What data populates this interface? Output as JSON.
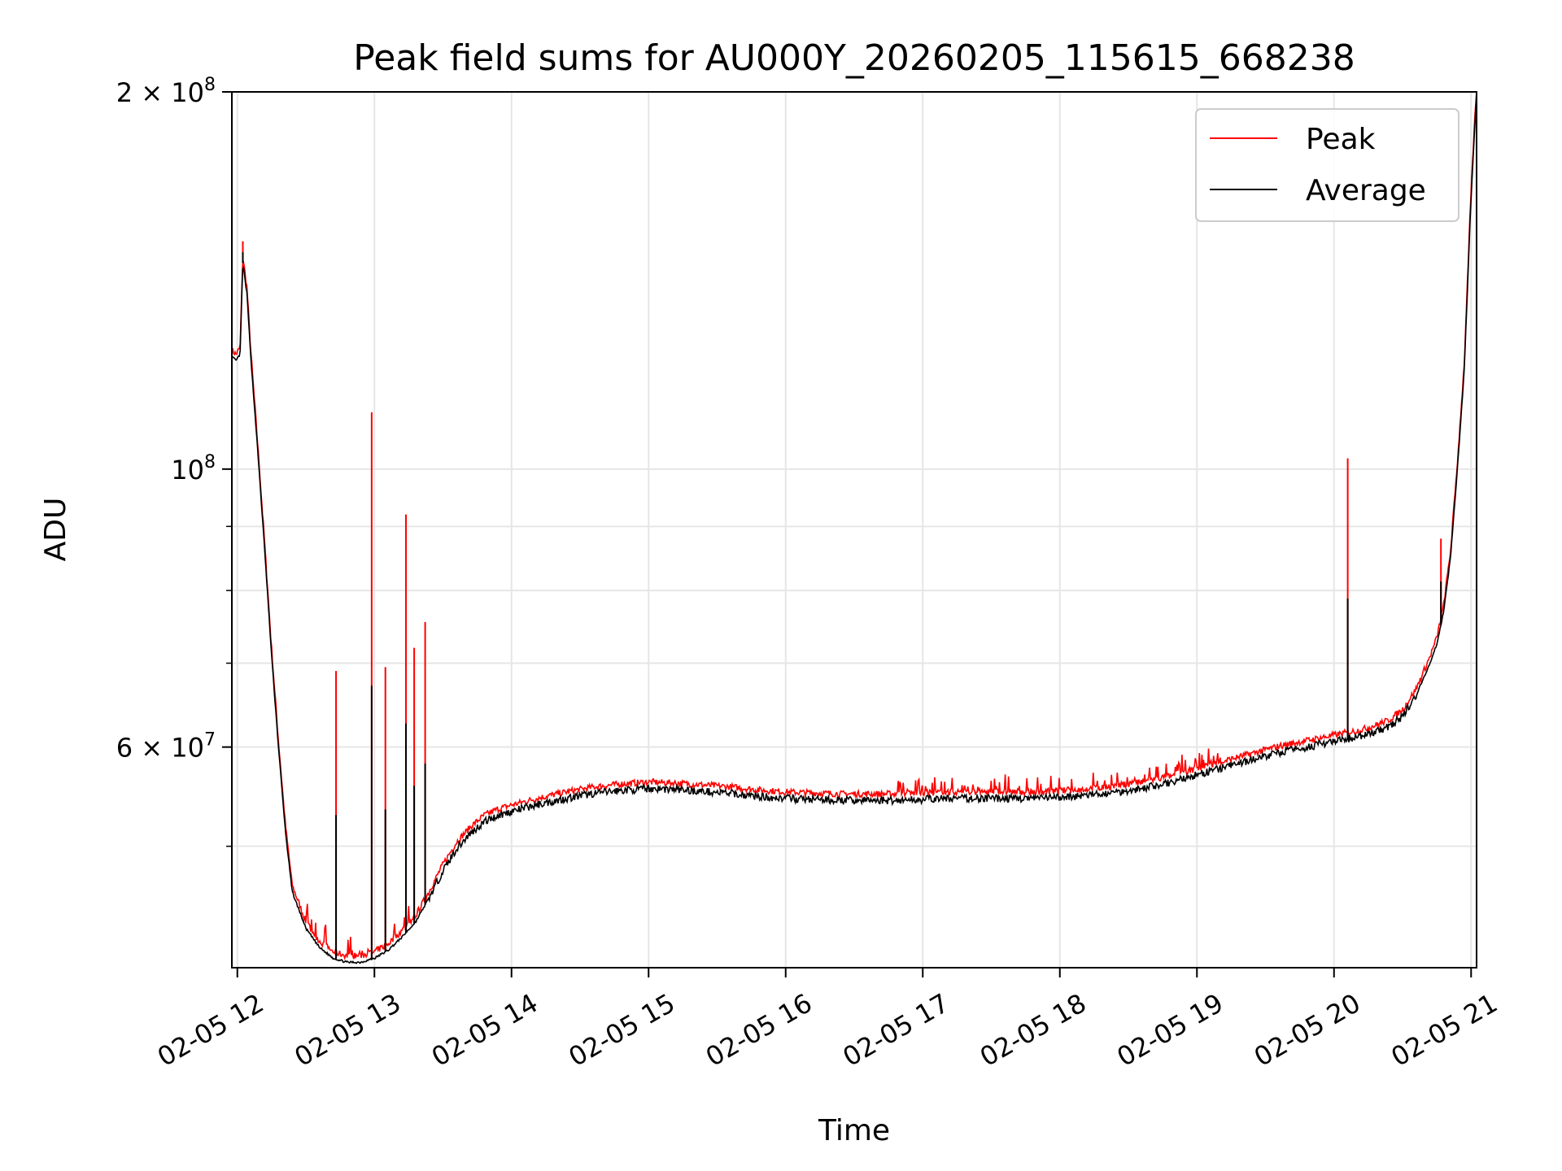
{
  "chart_data": {
    "type": "line",
    "title": "Peak field sums for AU000Y_20260205_115615_668238",
    "xlabel": "Time",
    "ylabel": "ADU",
    "yscale": "log",
    "xlim": [
      11.96,
      21.04
    ],
    "ylim": [
      40000000,
      200000000
    ],
    "grid": true,
    "legend_placement": "top-right",
    "x_ticks": [
      {
        "value": 12,
        "label": "02-05 12"
      },
      {
        "value": 13,
        "label": "02-05 13"
      },
      {
        "value": 14,
        "label": "02-05 14"
      },
      {
        "value": 15,
        "label": "02-05 15"
      },
      {
        "value": 16,
        "label": "02-05 16"
      },
      {
        "value": 17,
        "label": "02-05 17"
      },
      {
        "value": 18,
        "label": "02-05 18"
      },
      {
        "value": 19,
        "label": "02-05 19"
      },
      {
        "value": 20,
        "label": "02-05 20"
      },
      {
        "value": 21,
        "label": "02-05 21"
      }
    ],
    "y_ticks": [
      {
        "value": 200000000,
        "base": "2 × 10",
        "exp": "8"
      },
      {
        "value": 100000000,
        "base": "10",
        "exp": "8"
      },
      {
        "value": 60000000,
        "base": "6 × 10",
        "exp": "7"
      }
    ],
    "y_minor_ticks": [
      50000000,
      70000000,
      80000000,
      90000000
    ],
    "average_points": [
      [
        11.96,
        123000000
      ],
      [
        11.99,
        122000000
      ],
      [
        12.02,
        123500000
      ],
      [
        12.04,
        146000000
      ],
      [
        12.07,
        138000000
      ],
      [
        12.1,
        122000000
      ],
      [
        12.15,
        103000000
      ],
      [
        12.2,
        86000000
      ],
      [
        12.25,
        71000000
      ],
      [
        12.3,
        60000000
      ],
      [
        12.35,
        51500000
      ],
      [
        12.4,
        46000000
      ],
      [
        12.5,
        43000000
      ],
      [
        12.6,
        41500000
      ],
      [
        12.7,
        40700000
      ],
      [
        12.8,
        40400000
      ],
      [
        12.9,
        40400000
      ],
      [
        13.0,
        40700000
      ],
      [
        13.1,
        41300000
      ],
      [
        13.2,
        42300000
      ],
      [
        13.3,
        43500000
      ],
      [
        13.4,
        45500000
      ],
      [
        13.5,
        47800000
      ],
      [
        13.6,
        49800000
      ],
      [
        13.7,
        51200000
      ],
      [
        13.8,
        52300000
      ],
      [
        13.9,
        52900000
      ],
      [
        14.0,
        53300000
      ],
      [
        14.2,
        54000000
      ],
      [
        14.4,
        54600000
      ],
      [
        14.6,
        55100000
      ],
      [
        14.8,
        55400000
      ],
      [
        15.0,
        55600000
      ],
      [
        15.2,
        55500000
      ],
      [
        15.4,
        55300000
      ],
      [
        15.6,
        55100000
      ],
      [
        15.8,
        54800000
      ],
      [
        16.0,
        54600000
      ],
      [
        16.2,
        54500000
      ],
      [
        16.4,
        54400000
      ],
      [
        16.6,
        54400000
      ],
      [
        16.8,
        54400000
      ],
      [
        17.0,
        54500000
      ],
      [
        17.2,
        54600000
      ],
      [
        17.4,
        54600000
      ],
      [
        17.6,
        54600000
      ],
      [
        17.8,
        54600000
      ],
      [
        18.0,
        54700000
      ],
      [
        18.2,
        54900000
      ],
      [
        18.4,
        55200000
      ],
      [
        18.6,
        55600000
      ],
      [
        18.8,
        56200000
      ],
      [
        19.0,
        57000000
      ],
      [
        19.2,
        57800000
      ],
      [
        19.4,
        58600000
      ],
      [
        19.6,
        59400000
      ],
      [
        19.8,
        60000000
      ],
      [
        20.0,
        60600000
      ],
      [
        20.2,
        61200000
      ],
      [
        20.3,
        61700000
      ],
      [
        20.4,
        62300000
      ],
      [
        20.5,
        63500000
      ],
      [
        20.6,
        66000000
      ],
      [
        20.7,
        70000000
      ],
      [
        20.75,
        72500000
      ],
      [
        20.8,
        77000000
      ],
      [
        20.85,
        85000000
      ],
      [
        20.9,
        100000000
      ],
      [
        20.95,
        120000000
      ],
      [
        21.0,
        165000000
      ],
      [
        21.04,
        200000000
      ]
    ],
    "peak_spikes": [
      {
        "x": 12.04,
        "y": 152000000
      },
      {
        "x": 12.72,
        "y": 69000000
      },
      {
        "x": 12.98,
        "y": 111000000
      },
      {
        "x": 13.08,
        "y": 69500000
      },
      {
        "x": 13.23,
        "y": 92000000
      },
      {
        "x": 13.29,
        "y": 72000000
      },
      {
        "x": 13.37,
        "y": 75500000
      },
      {
        "x": 20.1,
        "y": 102000000
      },
      {
        "x": 20.78,
        "y": 88000000
      }
    ],
    "series": [
      {
        "name": "Peak",
        "color": "#ff0000"
      },
      {
        "name": "Average",
        "color": "#000000"
      }
    ]
  }
}
